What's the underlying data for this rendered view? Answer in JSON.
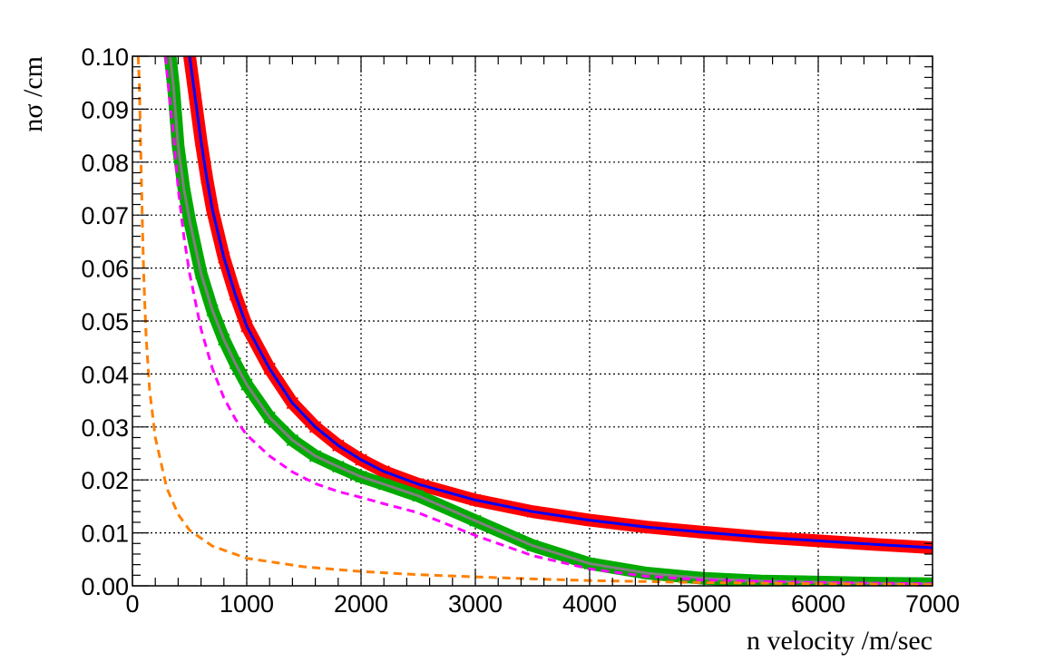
{
  "chart_data": {
    "type": "scatter",
    "title": "",
    "xlabel": "n velocity /m/sec",
    "ylabel": "nσ /cm",
    "xlim": [
      0,
      7000
    ],
    "ylim": [
      0,
      0.1
    ],
    "x_ticks": [
      "0",
      "1000",
      "2000",
      "3000",
      "4000",
      "5000",
      "6000",
      "7000"
    ],
    "y_ticks": [
      "0.00",
      "0.01",
      "0.02",
      "0.03",
      "0.04",
      "0.05",
      "0.06",
      "0.07",
      "0.08",
      "0.09",
      "0.10"
    ],
    "grid": true,
    "legend": "none",
    "series": [
      {
        "style": "markers",
        "marker": "x",
        "color": "#ff0000",
        "x": [
          500,
          550,
          600,
          650,
          700,
          800,
          900,
          1000,
          1200,
          1400,
          1600,
          1800,
          2000,
          2200,
          2500,
          3000,
          3500,
          4000,
          4500,
          5000,
          5500,
          6000,
          6500,
          7000
        ],
        "y": [
          0.1,
          0.092,
          0.084,
          0.077,
          0.071,
          0.062,
          0.055,
          0.049,
          0.041,
          0.0345,
          0.03,
          0.0265,
          0.0238,
          0.0216,
          0.0192,
          0.0162,
          0.014,
          0.0124,
          0.0111,
          0.0101,
          0.0092,
          0.0085,
          0.0078,
          0.0072
        ]
      },
      {
        "style": "line",
        "color": "#0000ff",
        "x": [
          500,
          550,
          600,
          650,
          700,
          800,
          900,
          1000,
          1200,
          1400,
          1600,
          1800,
          2000,
          2200,
          2500,
          3000,
          3500,
          4000,
          4500,
          5000,
          5500,
          6000,
          6500,
          7000
        ],
        "y": [
          0.1,
          0.092,
          0.084,
          0.077,
          0.071,
          0.062,
          0.055,
          0.049,
          0.041,
          0.0345,
          0.03,
          0.0265,
          0.0238,
          0.0216,
          0.0192,
          0.0162,
          0.014,
          0.0124,
          0.0111,
          0.0101,
          0.0092,
          0.0085,
          0.0078,
          0.0072
        ]
      },
      {
        "style": "markers",
        "marker": "x",
        "color": "#00aa00",
        "x": [
          330,
          360,
          400,
          450,
          500,
          600,
          700,
          800,
          900,
          1000,
          1200,
          1400,
          1600,
          1800,
          2000,
          2200,
          2500,
          3000,
          3500,
          4000,
          4500,
          5000,
          5500,
          6000,
          6500,
          7000
        ],
        "y": [
          0.1,
          0.094,
          0.083,
          0.075,
          0.069,
          0.059,
          0.052,
          0.0465,
          0.042,
          0.038,
          0.0318,
          0.0275,
          0.0245,
          0.0225,
          0.0206,
          0.0192,
          0.017,
          0.0123,
          0.0076,
          0.0042,
          0.0024,
          0.0014,
          0.0009,
          0.0007,
          0.0005,
          0.0004
        ]
      },
      {
        "style": "line",
        "color": "#808080",
        "x": [
          330,
          360,
          400,
          450,
          500,
          600,
          700,
          800,
          900,
          1000,
          1200,
          1400,
          1600,
          1800,
          2000,
          2200,
          2500,
          3000,
          3500,
          4000,
          4500,
          5000,
          5500,
          6000,
          6500,
          7000
        ],
        "y": [
          0.1,
          0.094,
          0.083,
          0.075,
          0.069,
          0.059,
          0.052,
          0.0465,
          0.042,
          0.038,
          0.0318,
          0.0275,
          0.0245,
          0.0225,
          0.0206,
          0.0192,
          0.017,
          0.0123,
          0.0076,
          0.0042,
          0.0024,
          0.0014,
          0.0009,
          0.0007,
          0.0005,
          0.0004
        ]
      },
      {
        "style": "dashed",
        "color": "#ff00ff",
        "x": [
          290,
          320,
          360,
          400,
          450,
          500,
          600,
          700,
          800,
          900,
          1000,
          1200,
          1400,
          1600,
          1800,
          2000,
          2200,
          2500,
          3000,
          3500,
          4000,
          4500,
          5000,
          5500,
          6000,
          6500,
          7000
        ],
        "y": [
          0.1,
          0.093,
          0.085,
          0.075,
          0.066,
          0.059,
          0.0485,
          0.041,
          0.0355,
          0.0315,
          0.0285,
          0.0245,
          0.0215,
          0.0193,
          0.0178,
          0.0167,
          0.0155,
          0.0138,
          0.0095,
          0.0057,
          0.0032,
          0.0018,
          0.0011,
          0.0008,
          0.0006,
          0.0005,
          0.0004
        ]
      },
      {
        "style": "dashed",
        "color": "#ff8000",
        "x": [
          50,
          60,
          70,
          80,
          90,
          100,
          110,
          120,
          150,
          200,
          300,
          400,
          500,
          700,
          1000,
          1500,
          2000,
          2500,
          3000,
          3500,
          4000,
          4500,
          5000,
          5500,
          6000,
          6500,
          7000
        ],
        "y": [
          0.1,
          0.095,
          0.085,
          0.075,
          0.066,
          0.058,
          0.052,
          0.047,
          0.037,
          0.028,
          0.0185,
          0.0135,
          0.0105,
          0.0075,
          0.0052,
          0.0036,
          0.0027,
          0.0021,
          0.0017,
          0.0013,
          0.001,
          0.0008,
          0.0006,
          0.0005,
          0.0004,
          0.0003,
          0.0002
        ]
      }
    ]
  }
}
